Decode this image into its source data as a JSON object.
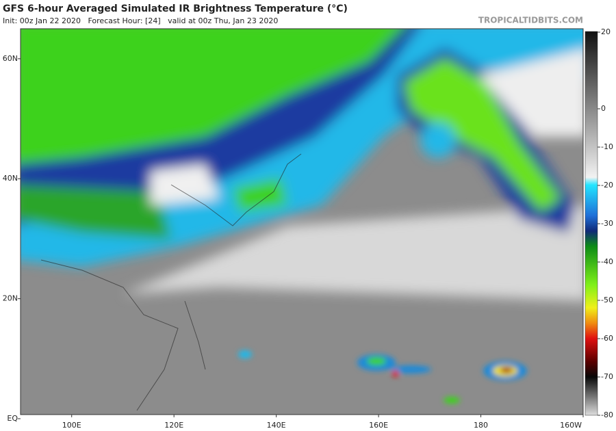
{
  "header": {
    "title": "GFS 6-hour Averaged Simulated IR Brightness Temperature (°C)",
    "subtitle": "Init: 00z Jan 22 2020   Forecast Hour: [24]   valid at 00z Thu, Jan 23 2020",
    "brand": "TROPICALTIDBITS.COM"
  },
  "map": {
    "lonlim": [
      90,
      200
    ],
    "latlim": [
      0,
      65
    ],
    "lon_ticks": [
      {
        "value": 100,
        "label": "100E"
      },
      {
        "value": 120,
        "label": "120E"
      },
      {
        "value": 140,
        "label": "140E"
      },
      {
        "value": 160,
        "label": "160E"
      },
      {
        "value": 180,
        "label": "180"
      },
      {
        "value": 200,
        "label": "160W"
      }
    ],
    "lat_ticks": [
      {
        "value": 60,
        "label": "60N"
      },
      {
        "value": 40,
        "label": "40N"
      },
      {
        "value": 20,
        "label": "20N"
      },
      {
        "value": 0,
        "label": "EQ"
      }
    ]
  },
  "colorbar": {
    "lim": [
      -80,
      20
    ],
    "ticks": [
      20,
      0,
      -10,
      -20,
      -30,
      -40,
      -50,
      -60,
      -70,
      -80
    ]
  }
}
